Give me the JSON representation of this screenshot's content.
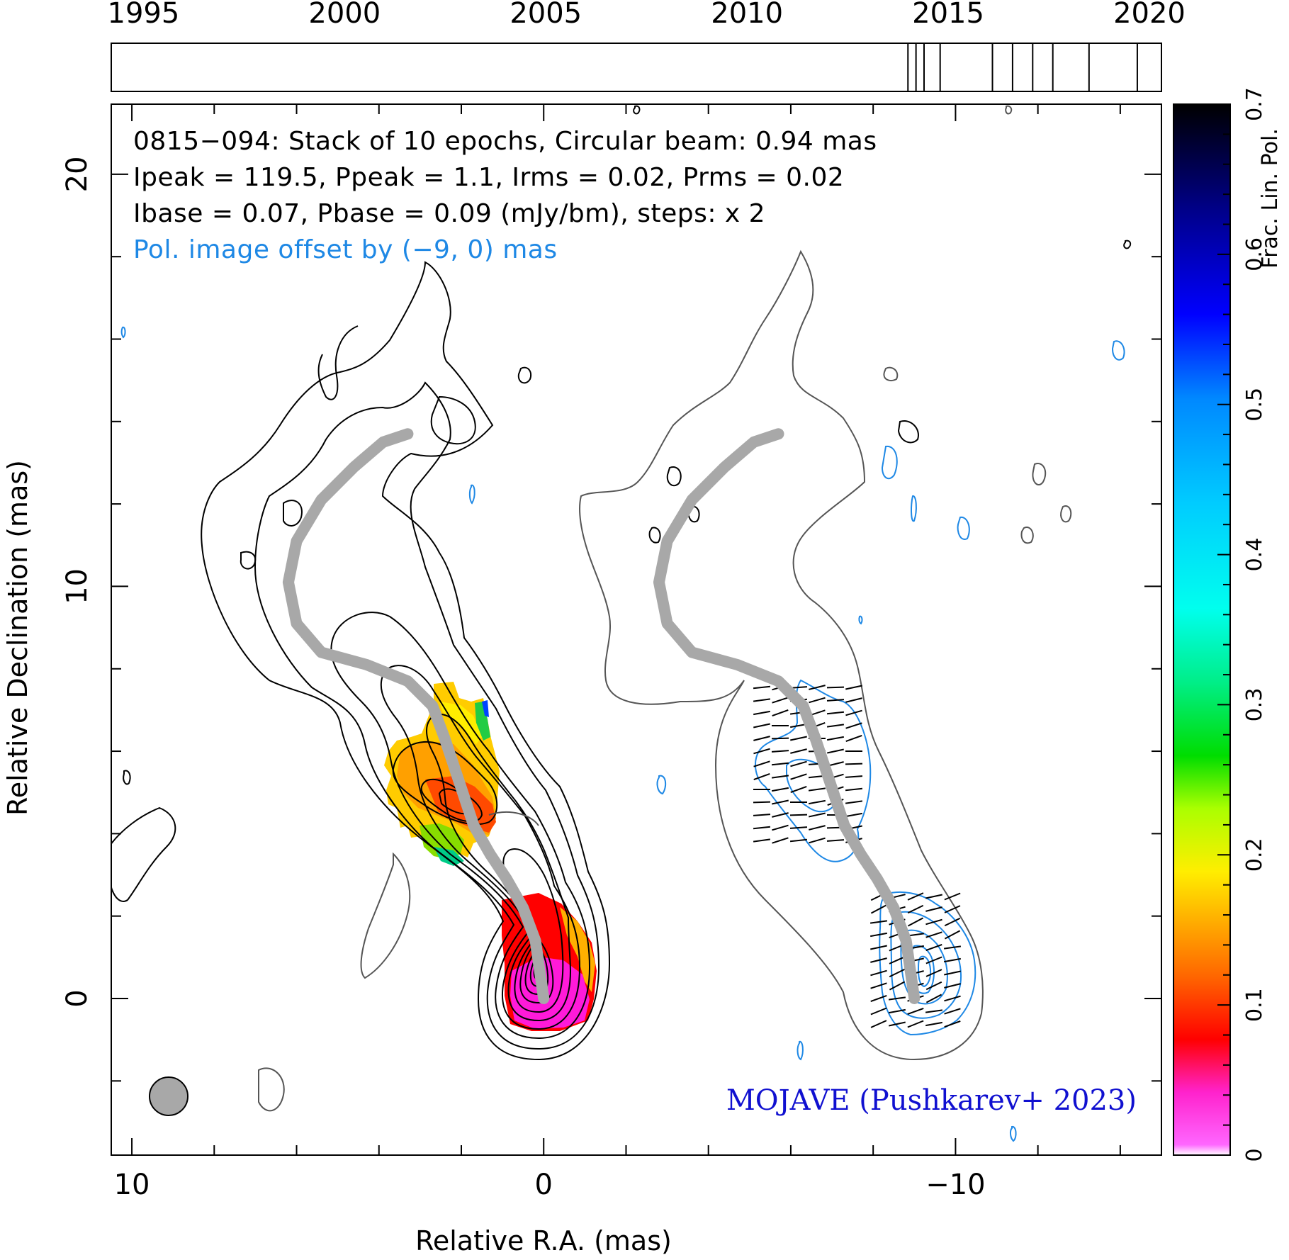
{
  "timeline": {
    "years": [
      "1995",
      "2000",
      "2005",
      "2010",
      "2015",
      "2020"
    ],
    "year_values": [
      1995,
      2000,
      2005,
      2010,
      2015,
      2020
    ],
    "range": [
      1994.2,
      2020.3
    ],
    "epochs": [
      2014.0,
      2014.2,
      2014.4,
      2014.8,
      2016.1,
      2016.6,
      2017.1,
      2017.6,
      2018.5,
      2019.7
    ]
  },
  "info": {
    "line1": "0815−094: Stack of 10 epochs, Circular beam: 0.94 mas",
    "line2": "Ipeak = 119.5, Ppeak = 1.1, Irms = 0.02, Prms = 0.02",
    "line3": "Ibase = 0.07, Pbase = 0.09 (mJy/bm), steps: x 2",
    "line4": "Pol. image offset by (−9, 0) mas"
  },
  "credit": "MOJAVE (Pushkarev+ 2023)",
  "colors": {
    "blue_contour": "#1e88e5",
    "ridge": "#a8a8a8",
    "credit": "#1010d0",
    "beam": "#a8a8a8"
  },
  "chart_data": {
    "type": "image",
    "source": "0815−094",
    "xlabel": "Relative R.A. (mas)",
    "ylabel": "Relative Declination (mas)",
    "xlim": [
      10.5,
      -15.0
    ],
    "ylim": [
      -3.8,
      21.7
    ],
    "x_ticks": [
      10,
      0,
      -10
    ],
    "x_tick_labels": [
      "10",
      "0",
      "−10"
    ],
    "y_ticks": [
      0,
      10,
      20
    ],
    "y_tick_labels": [
      "0",
      "10",
      "20"
    ],
    "beam_mas": 0.94,
    "stack_epochs": 10,
    "Ipeak": 119.5,
    "Ppeak": 1.1,
    "Irms": 0.02,
    "Prms": 0.02,
    "Ibase": 0.07,
    "Pbase": 0.09,
    "units": "mJy/bm",
    "contour_step_factor": 2,
    "pol_offset_mas": [
      -9,
      0
    ],
    "ridge_line": [
      [
        0.0,
        0.0
      ],
      [
        0.1,
        0.7
      ],
      [
        0.2,
        1.4
      ],
      [
        0.5,
        2.2
      ],
      [
        0.9,
        2.9
      ],
      [
        1.3,
        3.5
      ],
      [
        1.7,
        4.2
      ],
      [
        2.0,
        5.1
      ],
      [
        2.4,
        6.3
      ],
      [
        2.7,
        7.1
      ],
      [
        3.3,
        7.7
      ],
      [
        4.3,
        8.1
      ],
      [
        5.4,
        8.4
      ],
      [
        6.0,
        9.1
      ],
      [
        6.2,
        10.1
      ],
      [
        6.0,
        11.1
      ],
      [
        5.4,
        12.1
      ],
      [
        4.6,
        12.9
      ],
      [
        3.9,
        13.5
      ],
      [
        3.3,
        13.7
      ]
    ],
    "colorbar": {
      "label": "Frac. Lin. Pol.",
      "min": 0.0,
      "max": 0.7,
      "ticks": [
        0,
        0.1,
        0.2,
        0.3,
        0.4,
        0.5,
        0.6,
        0.7
      ],
      "tick_labels": [
        "0",
        "0.1",
        "0.2",
        "0.3",
        "0.4",
        "0.5",
        "0.6",
        "0.7"
      ]
    }
  }
}
